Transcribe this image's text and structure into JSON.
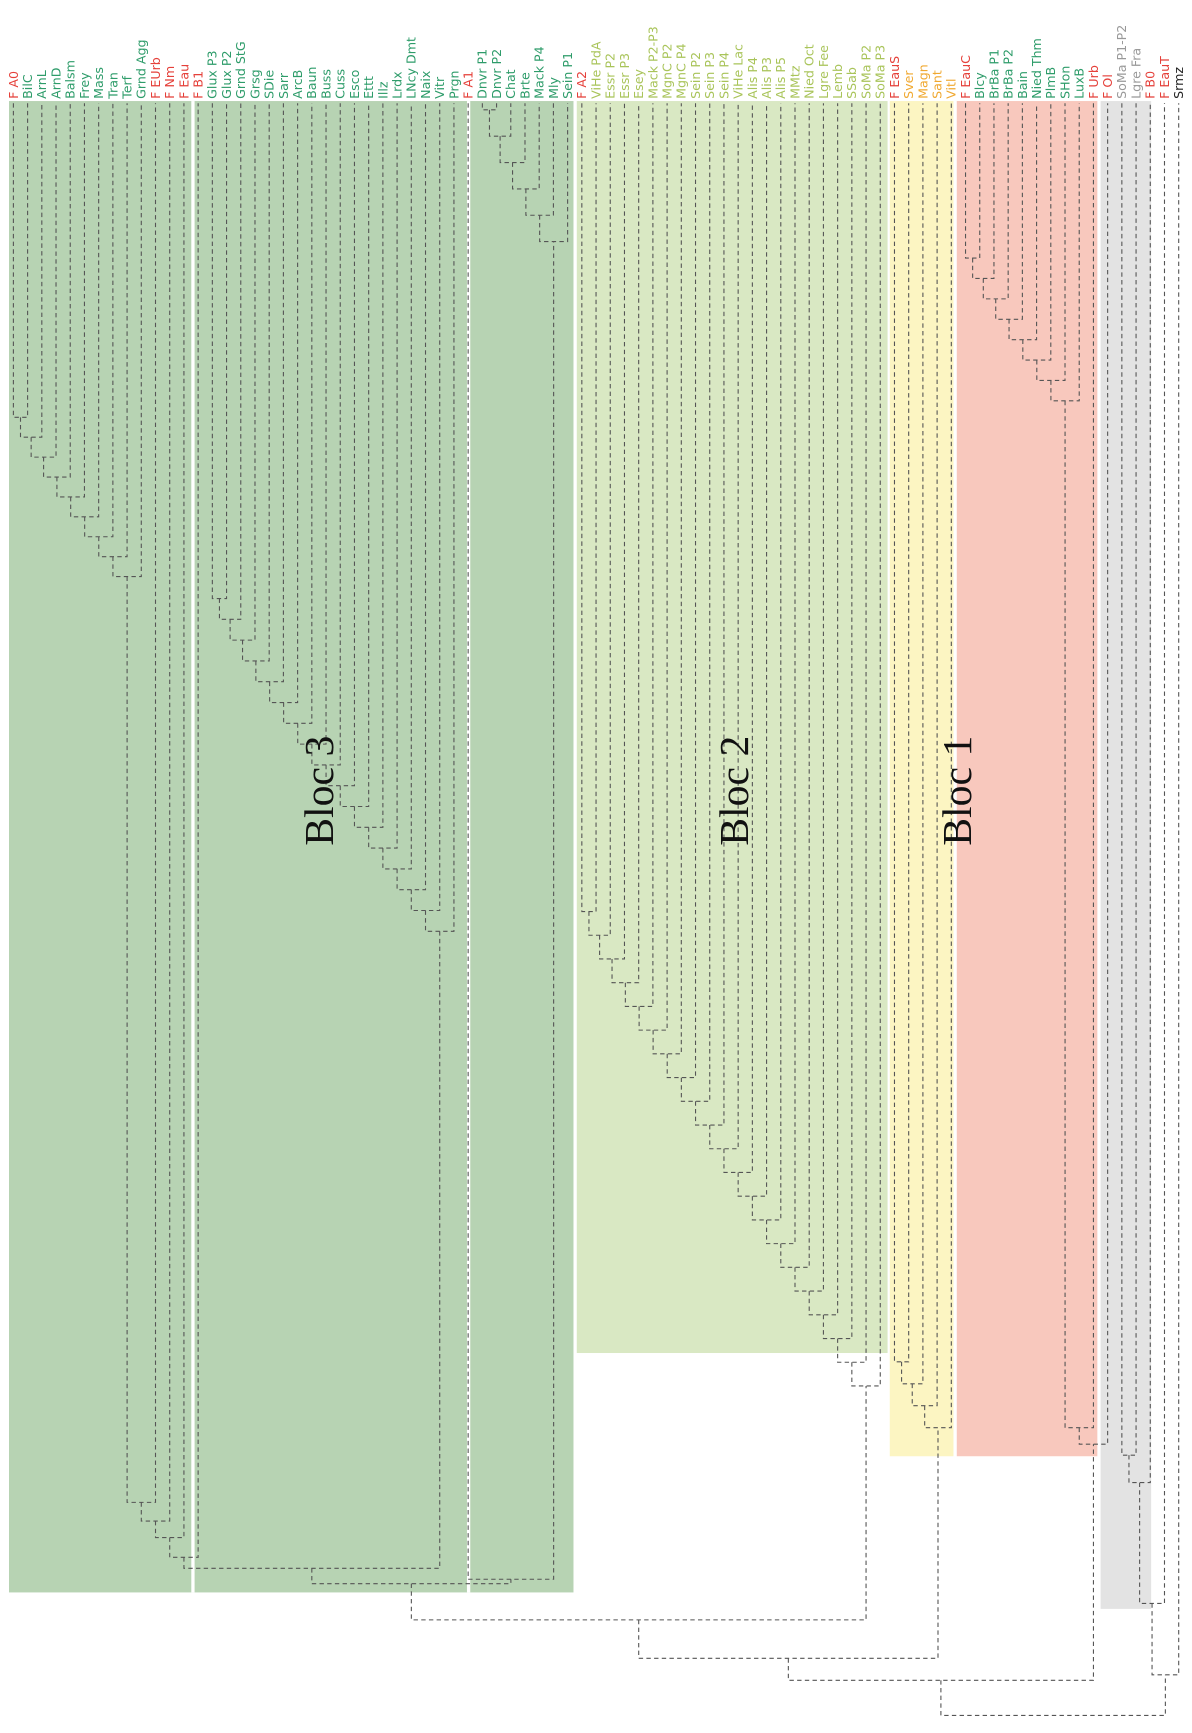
{
  "leaves": [
    {
      "label": "F A0",
      "color": "#e5403a"
    },
    {
      "label": "BilC",
      "color": "#2e9c6a"
    },
    {
      "label": "ArnL",
      "color": "#2e9c6a"
    },
    {
      "label": "ArnD",
      "color": "#2e9c6a"
    },
    {
      "label": "Balsm",
      "color": "#2e9c6a"
    },
    {
      "label": "Frey",
      "color": "#2e9c6a"
    },
    {
      "label": "Mass",
      "color": "#2e9c6a"
    },
    {
      "label": "Tran",
      "color": "#2e9c6a"
    },
    {
      "label": "Terf",
      "color": "#2e9c6a"
    },
    {
      "label": "Grnd Agg",
      "color": "#2e9c6a"
    },
    {
      "label": "F EUrb",
      "color": "#e5403a"
    },
    {
      "label": "F Nm",
      "color": "#e5403a"
    },
    {
      "label": "F Eau",
      "color": "#e5403a"
    },
    {
      "label": "F B1",
      "color": "#e5403a"
    },
    {
      "label": "Glux P3",
      "color": "#2e9c6a"
    },
    {
      "label": "Glux P2",
      "color": "#2e9c6a"
    },
    {
      "label": "Grnd StG",
      "color": "#2e9c6a"
    },
    {
      "label": "Grsg",
      "color": "#2e9c6a"
    },
    {
      "label": "SDie",
      "color": "#2e9c6a"
    },
    {
      "label": "Sarr",
      "color": "#2e9c6a"
    },
    {
      "label": "ArcB",
      "color": "#2e9c6a"
    },
    {
      "label": "Baun",
      "color": "#2e9c6a"
    },
    {
      "label": "Buss",
      "color": "#2e9c6a"
    },
    {
      "label": "Cuss",
      "color": "#2e9c6a"
    },
    {
      "label": "Esco",
      "color": "#2e9c6a"
    },
    {
      "label": "Ettt",
      "color": "#2e9c6a"
    },
    {
      "label": "Illz",
      "color": "#2e9c6a"
    },
    {
      "label": "Lrdx",
      "color": "#2e9c6a"
    },
    {
      "label": "LNcy Dmt",
      "color": "#2e9c6a"
    },
    {
      "label": "Naix",
      "color": "#2e9c6a"
    },
    {
      "label": "Vitr",
      "color": "#2e9c6a"
    },
    {
      "label": "Prgn",
      "color": "#2e9c6a"
    },
    {
      "label": "F A1",
      "color": "#e5403a"
    },
    {
      "label": "Dnvr P1",
      "color": "#2e9c6a"
    },
    {
      "label": "Dnvr P2",
      "color": "#2e9c6a"
    },
    {
      "label": "Chat",
      "color": "#2e9c6a"
    },
    {
      "label": "Brte",
      "color": "#2e9c6a"
    },
    {
      "label": "Mack P4",
      "color": "#2e9c6a"
    },
    {
      "label": "Mly",
      "color": "#2e9c6a"
    },
    {
      "label": "Sein P1",
      "color": "#2e9c6a"
    },
    {
      "label": "F A2",
      "color": "#e5403a"
    },
    {
      "label": "ViHe PdA",
      "color": "#a9c45a"
    },
    {
      "label": "Essr P2",
      "color": "#a9c45a"
    },
    {
      "label": "Essr P3",
      "color": "#a9c45a"
    },
    {
      "label": "Esey",
      "color": "#a9c45a"
    },
    {
      "label": "Mack P2-P3",
      "color": "#a9c45a"
    },
    {
      "label": "MgnC P2",
      "color": "#a9c45a"
    },
    {
      "label": "MgnC P4",
      "color": "#a9c45a"
    },
    {
      "label": "Sein P2",
      "color": "#a9c45a"
    },
    {
      "label": "Sein P3",
      "color": "#a9c45a"
    },
    {
      "label": "Sein P4",
      "color": "#a9c45a"
    },
    {
      "label": "ViHe Lac",
      "color": "#a9c45a"
    },
    {
      "label": "Alis P4",
      "color": "#a9c45a"
    },
    {
      "label": "Alis P3",
      "color": "#a9c45a"
    },
    {
      "label": "Alis P5",
      "color": "#a9c45a"
    },
    {
      "label": "MMtz",
      "color": "#a9c45a"
    },
    {
      "label": "Nied Oct",
      "color": "#a9c45a"
    },
    {
      "label": "Lgre Fee",
      "color": "#a9c45a"
    },
    {
      "label": "Lemb",
      "color": "#a9c45a"
    },
    {
      "label": "SSab",
      "color": "#a9c45a"
    },
    {
      "label": "SoMa P2",
      "color": "#a9c45a"
    },
    {
      "label": "SoMa P3",
      "color": "#a9c45a"
    },
    {
      "label": "F EauS",
      "color": "#e5403a"
    },
    {
      "label": "Sver",
      "color": "#f0a830"
    },
    {
      "label": "Magn",
      "color": "#f0a830"
    },
    {
      "label": "Sant",
      "color": "#f0a830"
    },
    {
      "label": "Vitl",
      "color": "#f0a830"
    },
    {
      "label": "F EauC",
      "color": "#e5403a"
    },
    {
      "label": "Blcy",
      "color": "#2e9c6a"
    },
    {
      "label": "BrBa P1",
      "color": "#2e9c6a"
    },
    {
      "label": "BrBa P2",
      "color": "#2e9c6a"
    },
    {
      "label": "Bain",
      "color": "#2e9c6a"
    },
    {
      "label": "Nied Thm",
      "color": "#2e9c6a"
    },
    {
      "label": "PlmB",
      "color": "#2e9c6a"
    },
    {
      "label": "SHon",
      "color": "#2e9c6a"
    },
    {
      "label": "LuxB",
      "color": "#2e9c6a"
    },
    {
      "label": "F Urb",
      "color": "#e5403a"
    },
    {
      "label": "F Ol",
      "color": "#e5403a"
    },
    {
      "label": "SoMa P1-P2",
      "color": "#999999"
    },
    {
      "label": "Lgre Fra",
      "color": "#999999"
    },
    {
      "label": "F B0",
      "color": "#e5403a"
    },
    {
      "label": "F EauT",
      "color": "#e5403a"
    },
    {
      "label": "Srmz",
      "color": "#222222"
    }
  ],
  "blocks": [
    {
      "label": "Bloc 3"
    },
    {
      "label": "Bloc 2"
    },
    {
      "label": "Bloc 1"
    }
  ]
}
